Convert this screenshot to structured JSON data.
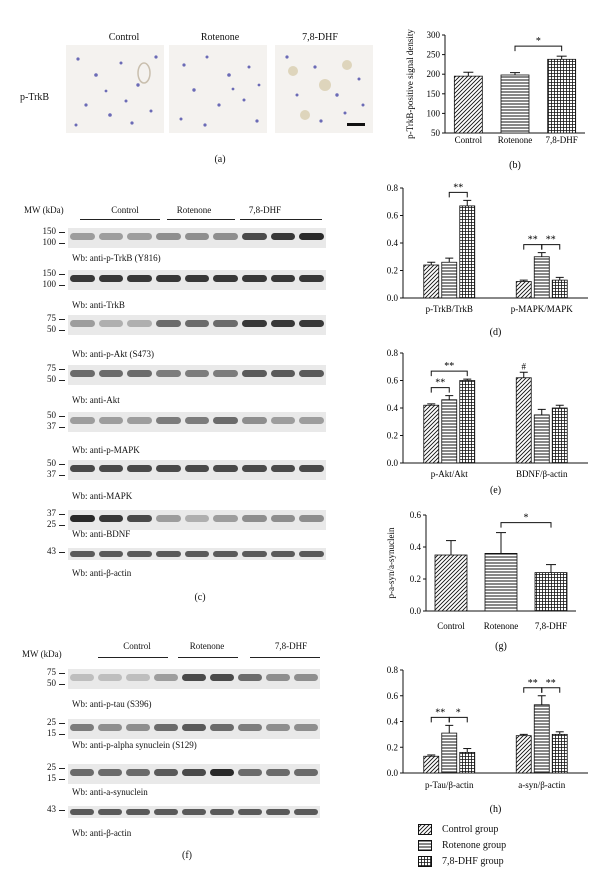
{
  "panel_a": {
    "row_label": "p-TrkB",
    "col_labels": [
      "Control",
      "Rotenone",
      "7,8-DHF"
    ],
    "caption": "(a)"
  },
  "panel_c": {
    "mw_label": "MW (kDa)",
    "group_labels": [
      "Control",
      "Rotenone",
      "7,8-DHF"
    ],
    "rows": [
      {
        "label": "Wb: anti-p-TrkB (Y816)",
        "markers": [
          "150",
          "100"
        ]
      },
      {
        "label": "Wb: anti-TrkB",
        "markers": [
          "150",
          "100"
        ]
      },
      {
        "label": "Wb: anti-p-Akt (S473)",
        "markers": [
          "75",
          "50"
        ]
      },
      {
        "label": "Wb: anti-Akt",
        "markers": [
          "75",
          "50"
        ]
      },
      {
        "label": "Wb: anti-p-MAPK",
        "markers": [
          "50",
          "37"
        ]
      },
      {
        "label": "Wb: anti-MAPK",
        "markers": [
          "50",
          "37"
        ]
      },
      {
        "label": "Wb: anti-BDNF",
        "markers": [
          "37",
          "25"
        ]
      },
      {
        "label": "Wb: anti-β-actin",
        "markers": [
          "43"
        ]
      }
    ],
    "caption": "(c)"
  },
  "panel_f": {
    "mw_label": "MW (kDa)",
    "group_labels": [
      "Control",
      "Rotenone",
      "7,8-DHF"
    ],
    "rows": [
      {
        "label": "Wb: anti-p-tau (S396)",
        "markers": [
          "75",
          "50"
        ]
      },
      {
        "label": "Wb: anti-p-alpha synuclein (S129)",
        "markers": [
          "25",
          "15"
        ]
      },
      {
        "label": "Wb: anti-a-synuclein",
        "markers": [
          "25",
          "15"
        ]
      },
      {
        "label": "Wb: anti-β-actin",
        "markers": [
          "43"
        ]
      }
    ],
    "caption": "(f)"
  },
  "legend": {
    "items": [
      "Control group",
      "Rotenone group",
      "7,8-DHF group"
    ]
  },
  "chart_data": [
    {
      "id": "b",
      "type": "bar",
      "caption": "(b)",
      "ylabel": "p-TrkB-positive signal density",
      "ylim": [
        50,
        300
      ],
      "yticks": [
        50,
        100,
        150,
        200,
        250,
        300
      ],
      "categories": [
        "Control",
        "Rotenone",
        "7,8-DHF"
      ],
      "values": [
        195,
        198,
        238
      ],
      "errors": [
        10,
        6,
        8
      ],
      "annotations": [
        {
          "text": "*",
          "from": 1,
          "to": 2
        }
      ]
    },
    {
      "id": "d",
      "type": "bar",
      "caption": "(d)",
      "ylim": [
        0,
        0.8
      ],
      "yticks": [
        0.0,
        0.2,
        0.4,
        0.6,
        0.8
      ],
      "categories": [
        "p-TrkB/TrkB",
        "p-MAPK/MAPK"
      ],
      "series": [
        {
          "name": "Control group",
          "values": [
            0.24,
            0.12
          ],
          "errors": [
            0.02,
            0.01
          ]
        },
        {
          "name": "Rotenone group",
          "values": [
            0.26,
            0.3
          ],
          "errors": [
            0.03,
            0.03
          ]
        },
        {
          "name": "7,8-DHF group",
          "values": [
            0.67,
            0.13
          ],
          "errors": [
            0.04,
            0.02
          ]
        }
      ],
      "annotations": [
        {
          "text": "**",
          "group": 0,
          "from": 1,
          "to": 2
        },
        {
          "text": "**",
          "group": 1,
          "from": 0,
          "to": 1
        },
        {
          "text": "**",
          "group": 1,
          "from": 1,
          "to": 2
        }
      ]
    },
    {
      "id": "e",
      "type": "bar",
      "caption": "(e)",
      "ylim": [
        0,
        0.8
      ],
      "yticks": [
        0.0,
        0.2,
        0.4,
        0.6,
        0.8
      ],
      "categories": [
        "p-Akt/Akt",
        "BDNF/β-actin"
      ],
      "series": [
        {
          "name": "Control group",
          "values": [
            0.42,
            0.62
          ],
          "errors": [
            0.01,
            0.04
          ]
        },
        {
          "name": "Rotenone group",
          "values": [
            0.46,
            0.35
          ],
          "errors": [
            0.03,
            0.04
          ]
        },
        {
          "name": "7,8-DHF group",
          "values": [
            0.6,
            0.4
          ],
          "errors": [
            0.01,
            0.02
          ]
        }
      ],
      "annotations": [
        {
          "text": "**",
          "group": 0,
          "from": 0,
          "to": 1
        },
        {
          "text": "**",
          "group": 0,
          "from": 0,
          "to": 2
        },
        {
          "text": "#",
          "group": 1,
          "bar": 0
        }
      ]
    },
    {
      "id": "g",
      "type": "bar",
      "caption": "(g)",
      "ylabel": "p-a-syn/a-synuclein",
      "ylim": [
        0,
        0.6
      ],
      "yticks": [
        0.0,
        0.2,
        0.4,
        0.6
      ],
      "categories": [
        "Control",
        "Rotenone",
        "7,8-DHF"
      ],
      "values": [
        0.35,
        0.36,
        0.24
      ],
      "errors": [
        0.09,
        0.13,
        0.05
      ],
      "annotations": [
        {
          "text": "*",
          "from": 1,
          "to": 2
        }
      ]
    },
    {
      "id": "h",
      "type": "bar",
      "caption": "(h)",
      "ylim": [
        0,
        0.8
      ],
      "yticks": [
        0.0,
        0.2,
        0.4,
        0.6,
        0.8
      ],
      "categories": [
        "p-Tau/β-actin",
        "a-syn/β-actin"
      ],
      "series": [
        {
          "name": "Control group",
          "values": [
            0.13,
            0.29
          ],
          "errors": [
            0.01,
            0.01
          ]
        },
        {
          "name": "Rotenone group",
          "values": [
            0.31,
            0.53
          ],
          "errors": [
            0.06,
            0.07
          ]
        },
        {
          "name": "7,8-DHF group",
          "values": [
            0.16,
            0.3
          ],
          "errors": [
            0.03,
            0.02
          ]
        }
      ],
      "annotations": [
        {
          "text": "**",
          "group": 0,
          "from": 0,
          "to": 1
        },
        {
          "text": "*",
          "group": 0,
          "from": 1,
          "to": 2
        },
        {
          "text": "**",
          "group": 1,
          "from": 0,
          "to": 1
        },
        {
          "text": "**",
          "group": 1,
          "from": 1,
          "to": 2
        }
      ]
    }
  ]
}
